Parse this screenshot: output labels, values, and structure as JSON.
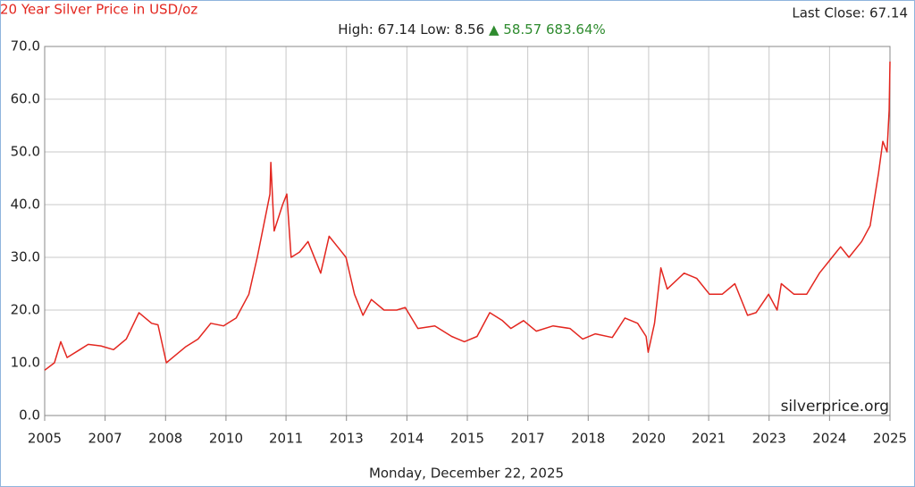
{
  "chart_data": {
    "type": "line",
    "title": "20 Year Silver Price in USD/oz",
    "last_close": "Last Close: 67.14",
    "summary": "High: 67.14 Low: 8.56",
    "change": "▲ 58.57 683.64%",
    "watermark": "silverprice.org",
    "date": "Monday, December 22, 2025",
    "color": "#e3261f",
    "grid": true,
    "x": [
      2005.97,
      2006.2,
      2006.35,
      2006.5,
      2006.8,
      2007.0,
      2007.3,
      2007.6,
      2007.9,
      2008.2,
      2008.5,
      2008.65,
      2008.85,
      2009.0,
      2009.3,
      2009.6,
      2009.9,
      2010.2,
      2010.5,
      2010.8,
      2011.0,
      2011.3,
      2011.32,
      2011.4,
      2011.6,
      2011.7,
      2011.8,
      2012.0,
      2012.2,
      2012.5,
      2012.7,
      2012.9,
      2013.1,
      2013.3,
      2013.5,
      2013.7,
      2014.0,
      2014.3,
      2014.5,
      2014.8,
      2015.2,
      2015.6,
      2015.9,
      2016.2,
      2016.5,
      2016.8,
      2017.0,
      2017.3,
      2017.6,
      2018.0,
      2018.4,
      2018.7,
      2019.0,
      2019.4,
      2019.7,
      2020.0,
      2020.2,
      2020.25,
      2020.4,
      2020.55,
      2020.7,
      2021.1,
      2021.4,
      2021.7,
      2022.0,
      2022.3,
      2022.6,
      2022.8,
      2023.1,
      2023.3,
      2023.4,
      2023.7,
      2024.0,
      2024.3,
      2024.6,
      2024.8,
      2025.0,
      2025.3,
      2025.5,
      2025.7,
      2025.8,
      2025.9,
      2025.95,
      2025.97
    ],
    "values": [
      8.6,
      10,
      14,
      11,
      12.5,
      13.5,
      13.2,
      12.5,
      14.5,
      19.5,
      17.5,
      17.2,
      10,
      11,
      13,
      14.5,
      17.5,
      17,
      18.5,
      23,
      30,
      42,
      48,
      35,
      40,
      42,
      30,
      31,
      33,
      27,
      34,
      32,
      30,
      23,
      19,
      22,
      20,
      20,
      20.5,
      16.5,
      17,
      15,
      14,
      15,
      19.5,
      18,
      16.5,
      18,
      16,
      17,
      16.5,
      14.5,
      15.5,
      14.8,
      18.5,
      17.5,
      15,
      12,
      17.5,
      28,
      24,
      27,
      26,
      23,
      23,
      25,
      19,
      19.5,
      23,
      20,
      25,
      23,
      23,
      27,
      30,
      32,
      30,
      33,
      36,
      46,
      52,
      50,
      58,
      67.14
    ],
    "xlim": [
      2005.97,
      2025.97
    ],
    "xticks": [
      {
        "value": 2005.97,
        "label": "2005"
      },
      {
        "value": 2007.4,
        "label": "2007"
      },
      {
        "value": 2008.83,
        "label": "2008"
      },
      {
        "value": 2010.26,
        "label": "2010"
      },
      {
        "value": 2011.68,
        "label": "2011"
      },
      {
        "value": 2013.11,
        "label": "2013"
      },
      {
        "value": 2014.54,
        "label": "2014"
      },
      {
        "value": 2015.97,
        "label": "2015"
      },
      {
        "value": 2017.4,
        "label": "2017"
      },
      {
        "value": 2018.83,
        "label": "2018"
      },
      {
        "value": 2020.26,
        "label": "2020"
      },
      {
        "value": 2021.68,
        "label": "2021"
      },
      {
        "value": 2023.11,
        "label": "2023"
      },
      {
        "value": 2024.54,
        "label": "2024"
      },
      {
        "value": 2025.97,
        "label": "2025"
      }
    ],
    "ylim": [
      0,
      70
    ],
    "yticks": [
      {
        "value": 0,
        "label": "0.0"
      },
      {
        "value": 10,
        "label": "10.0"
      },
      {
        "value": 20,
        "label": "20.0"
      },
      {
        "value": 30,
        "label": "30.0"
      },
      {
        "value": 40,
        "label": "40.0"
      },
      {
        "value": 50,
        "label": "50.0"
      },
      {
        "value": 60,
        "label": "60.0"
      },
      {
        "value": 70,
        "label": "70.0"
      }
    ]
  }
}
